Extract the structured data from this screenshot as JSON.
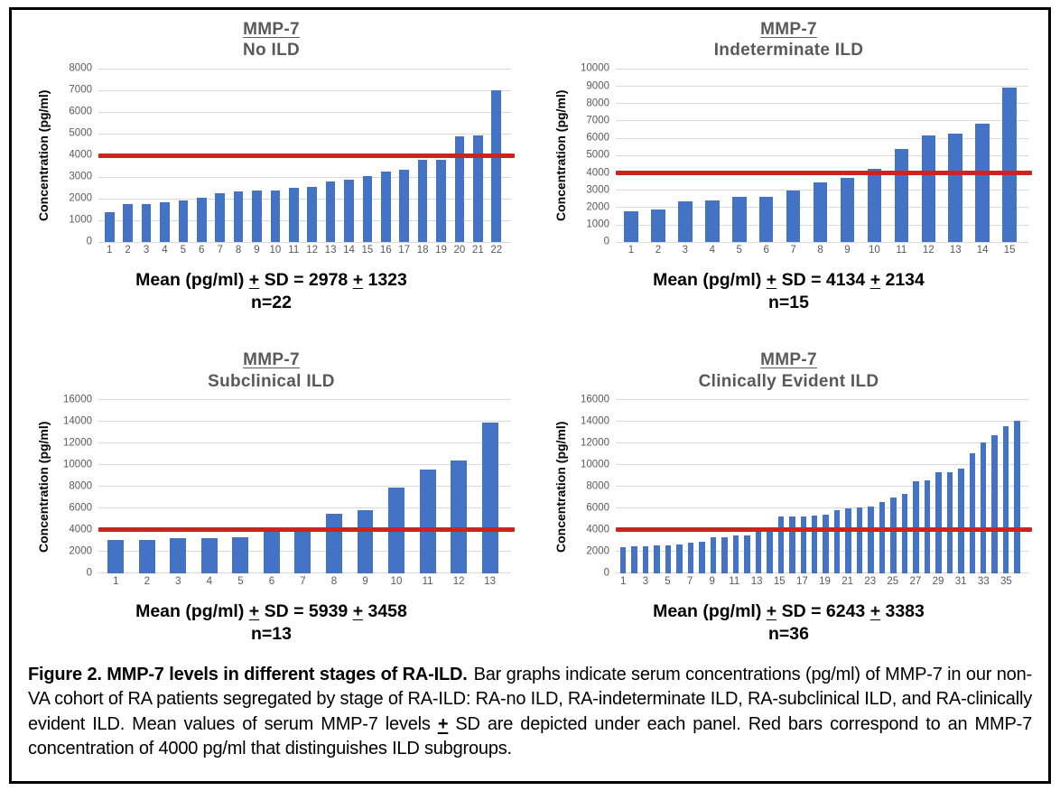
{
  "figure": {
    "caption": {
      "bold": "Figure 2.  MMP-7 levels in different stages of RA-ILD.",
      "text": "Bar graphs indicate serum concentrations (pg/ml) of MMP-7 in our non-VA cohort of RA patients segregated by stage of RA-ILD:  RA-no ILD, RA-indeterminate ILD, RA-subclinical ILD, and RA-clinically evident ILD.  Mean values of serum MMP-7 levels ± SD are depicted under each panel.  Red bars correspond to an MMP-7 concentration of 4000 pg/ml that distinguishes ILD subgroups."
    }
  },
  "colors": {
    "bar": "#4472C4",
    "refline": "#CE2420",
    "gridline": "#D9D9D9",
    "title": "#595959",
    "tick": "#595959",
    "text": "#000000"
  },
  "chart_data": [
    {
      "type": "bar",
      "title": "MMP-7",
      "subtitle": "No ILD",
      "ylabel": "Concentration (pg/ml)",
      "ylim": [
        0,
        8000
      ],
      "ytick_step": 1000,
      "xtick_step": 1,
      "grid": true,
      "legend": "none",
      "refline": 4000,
      "categories": [
        1,
        2,
        3,
        4,
        5,
        6,
        7,
        8,
        9,
        10,
        11,
        12,
        13,
        14,
        15,
        16,
        17,
        18,
        19,
        20,
        21,
        22
      ],
      "values": [
        1400,
        1750,
        1750,
        1850,
        1950,
        2050,
        2250,
        2350,
        2400,
        2400,
        2500,
        2550,
        2800,
        2900,
        3050,
        3250,
        3350,
        3800,
        3800,
        4900,
        4950,
        7000
      ],
      "mean_label": "Mean (pg/ml) ± SD = 2978 ± 1323",
      "n_label": "n=22"
    },
    {
      "type": "bar",
      "title": "MMP-7",
      "subtitle": "Indeterminate ILD",
      "ylabel": "Concentration (pg/ml)",
      "ylim": [
        0,
        10000
      ],
      "ytick_step": 1000,
      "xtick_step": 1,
      "grid": true,
      "legend": "none",
      "refline": 4000,
      "categories": [
        1,
        2,
        3,
        4,
        5,
        6,
        7,
        8,
        9,
        10,
        11,
        12,
        13,
        14,
        15
      ],
      "values": [
        1800,
        1900,
        2350,
        2400,
        2600,
        2600,
        3000,
        3450,
        3700,
        4250,
        5400,
        6150,
        6250,
        6850,
        8900
      ],
      "mean_label": "Mean (pg/ml) ± SD = 4134 ± 2134",
      "n_label": "n=15"
    },
    {
      "type": "bar",
      "title": "MMP-7",
      "subtitle": "Subclinical ILD",
      "ylabel": "Concentration (pg/ml)",
      "ylim": [
        0,
        16000
      ],
      "ytick_step": 2000,
      "xtick_step": 1,
      "grid": true,
      "legend": "none",
      "refline": 4000,
      "categories": [
        1,
        2,
        3,
        4,
        5,
        6,
        7,
        8,
        9,
        10,
        11,
        12,
        13
      ],
      "values": [
        3100,
        3100,
        3200,
        3250,
        3350,
        3950,
        4150,
        5450,
        5800,
        7900,
        9600,
        10400,
        13900
      ],
      "mean_label": "Mean (pg/ml) ± SD = 5939 ± 3458",
      "n_label": "n=13"
    },
    {
      "type": "bar",
      "title": "MMP-7",
      "subtitle": "Clinically  Evident ILD",
      "ylabel": "Concentration (pg/ml)",
      "ylim": [
        0,
        16000
      ],
      "ytick_step": 2000,
      "xtick_step": 2,
      "grid": true,
      "legend": "none",
      "refline": 4000,
      "categories": [
        1,
        2,
        3,
        4,
        5,
        6,
        7,
        8,
        9,
        10,
        11,
        12,
        13,
        14,
        15,
        16,
        17,
        18,
        19,
        20,
        21,
        22,
        23,
        24,
        25,
        26,
        27,
        28,
        29,
        30,
        31,
        32,
        33,
        34,
        35,
        36
      ],
      "values": [
        2400,
        2500,
        2500,
        2550,
        2550,
        2650,
        2850,
        2900,
        3300,
        3350,
        3450,
        3450,
        4150,
        4200,
        5200,
        5250,
        5250,
        5300,
        5400,
        5850,
        6000,
        6050,
        6150,
        6550,
        6950,
        7300,
        8450,
        8600,
        9300,
        9350,
        9650,
        11100,
        12100,
        12700,
        13600,
        14100
      ],
      "mean_label": "Mean (pg/ml) ± SD = 6243 ± 3383",
      "n_label": "n=36"
    }
  ]
}
